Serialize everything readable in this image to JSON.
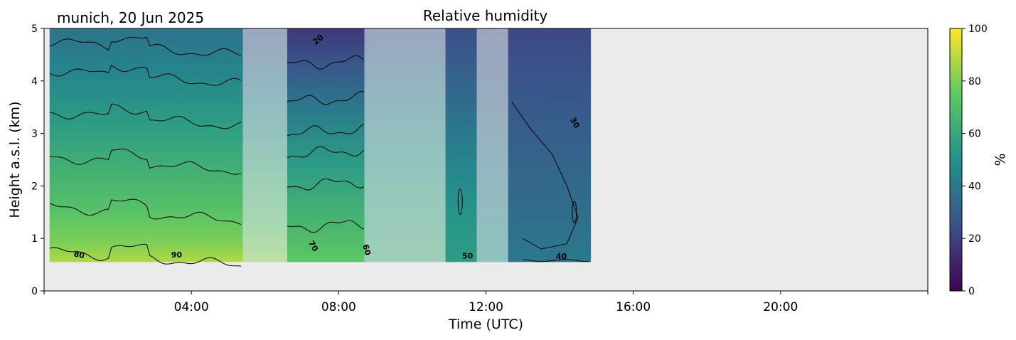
{
  "header": {
    "location_date": "munich, 20 Jun 2025",
    "title": "Relative humidity"
  },
  "chart_data": {
    "type": "heatmap",
    "title": "Relative humidity",
    "xlabel": "Time (UTC)",
    "ylabel": "Height a.s.l. (km)",
    "xlim_hours": [
      0,
      24
    ],
    "ylim_km": [
      0,
      5
    ],
    "x_tick_hours": [
      4,
      8,
      12,
      16,
      20
    ],
    "x_tick_labels": [
      "04:00",
      "08:00",
      "12:00",
      "16:00",
      "20:00"
    ],
    "y_ticks": [
      0,
      1,
      2,
      3,
      4,
      5
    ],
    "data_extent_hours": [
      0.15,
      14.85
    ],
    "data_base_km": 0.55,
    "colorbar": {
      "label": "%",
      "ticks": [
        0,
        20,
        40,
        60,
        80,
        100
      ],
      "colormap": [
        "#440154",
        "#3b528b",
        "#21918c",
        "#5ec962",
        "#fde725"
      ]
    },
    "contour_labels": [
      {
        "text": "80",
        "hour": 0.95,
        "km": 0.68,
        "angle": 12
      },
      {
        "text": "90",
        "hour": 3.6,
        "km": 0.68,
        "angle": 0
      },
      {
        "text": "20",
        "hour": 7.45,
        "km": 4.78,
        "angle": -40
      },
      {
        "text": "70",
        "hour": 7.3,
        "km": 0.85,
        "angle": 60
      },
      {
        "text": "60",
        "hour": 8.75,
        "km": 0.78,
        "angle": 75
      },
      {
        "text": "50",
        "hour": 11.5,
        "km": 0.66,
        "angle": 0
      },
      {
        "text": "40",
        "hour": 14.05,
        "km": 0.65,
        "angle": 0
      },
      {
        "text": "30",
        "hour": 14.4,
        "km": 3.2,
        "angle": 60
      }
    ],
    "masked_periods_hours": [
      [
        5.4,
        6.6
      ],
      [
        8.7,
        10.9
      ],
      [
        11.75,
        12.6
      ]
    ],
    "columns_rh": [
      {
        "h": [
          0.15,
          5.4
        ],
        "rh": [
          [
            0.55,
            88
          ],
          [
            0.9,
            80
          ],
          [
            1.5,
            72
          ],
          [
            2.3,
            64
          ],
          [
            3.2,
            55
          ],
          [
            4.2,
            45
          ],
          [
            5,
            38
          ]
        ]
      },
      {
        "h": [
          5.4,
          6.6
        ],
        "rh": [
          [
            0.55,
            82
          ],
          [
            1.2,
            72
          ],
          [
            2.5,
            58
          ],
          [
            3.5,
            45
          ],
          [
            4.5,
            32
          ],
          [
            5,
            26
          ]
        ]
      },
      {
        "h": [
          6.6,
          8.7
        ],
        "rh": [
          [
            0.55,
            74
          ],
          [
            1.3,
            66
          ],
          [
            2.5,
            54
          ],
          [
            3.5,
            40
          ],
          [
            4.3,
            27
          ],
          [
            5,
            17
          ]
        ]
      },
      {
        "h": [
          8.7,
          10.9
        ],
        "rh": [
          [
            0.55,
            62
          ],
          [
            1.5,
            58
          ],
          [
            2.5,
            52
          ],
          [
            3.5,
            42
          ],
          [
            4.5,
            30
          ],
          [
            5,
            25
          ]
        ]
      },
      {
        "h": [
          10.9,
          11.75
        ],
        "rh": [
          [
            0.55,
            55
          ],
          [
            1.5,
            52
          ],
          [
            2.5,
            45
          ],
          [
            3.5,
            36
          ],
          [
            4.5,
            28
          ],
          [
            5,
            24
          ]
        ]
      },
      {
        "h": [
          11.75,
          12.6
        ],
        "rh": [
          [
            0.55,
            50
          ],
          [
            2,
            42
          ],
          [
            3.5,
            32
          ],
          [
            5,
            24
          ]
        ]
      },
      {
        "h": [
          12.6,
          14.85
        ],
        "rh": [
          [
            0.55,
            40
          ],
          [
            1.5,
            36
          ],
          [
            2.5,
            32
          ],
          [
            3.5,
            28
          ],
          [
            4.5,
            24
          ],
          [
            5,
            22
          ]
        ]
      }
    ]
  }
}
